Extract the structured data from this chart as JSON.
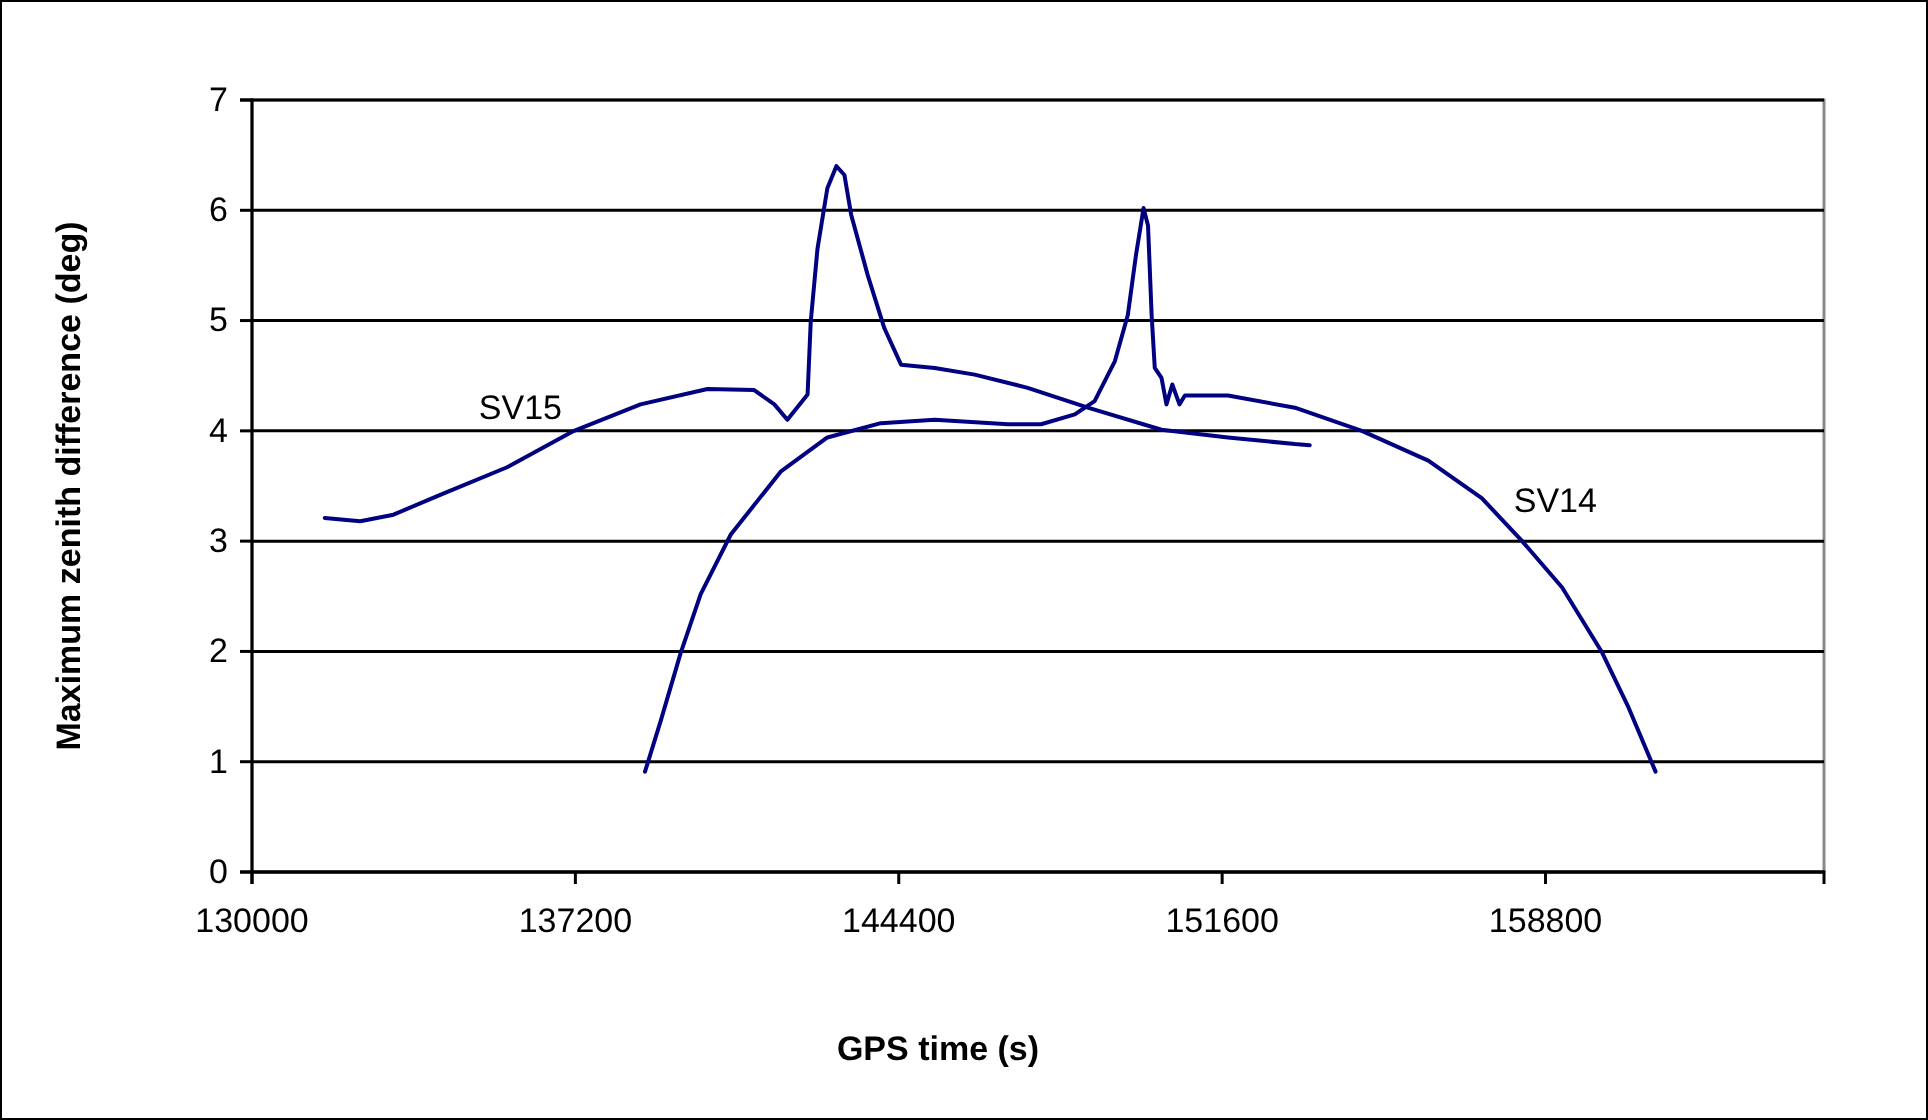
{
  "chart_data": {
    "type": "line",
    "xlabel": "GPS time (s)",
    "ylabel": "Maximum zenith difference (deg)",
    "xlim": [
      130000,
      165000
    ],
    "xticks": [
      130000,
      137200,
      144400,
      151600,
      158800
    ],
    "ylim": [
      0,
      7
    ],
    "yticks": [
      0,
      1,
      2,
      3,
      4,
      5,
      6,
      7
    ],
    "grid": "y",
    "legend": false,
    "marker": "none",
    "line_style": "solid",
    "series": [
      {
        "name": "SV15",
        "color": "#000080",
        "x": [
          131620,
          132410,
          133150,
          134190,
          135680,
          137170,
          138650,
          140140,
          141180,
          141630,
          141920,
          142370,
          142440,
          142590,
          142810,
          143010,
          143190,
          143340,
          143710,
          144080,
          144450,
          145200,
          146090,
          147270,
          148610,
          150250,
          151730,
          153220,
          153550
        ],
        "values": [
          3.21,
          3.18,
          3.24,
          3.42,
          3.67,
          4.0,
          4.24,
          4.38,
          4.37,
          4.24,
          4.1,
          4.33,
          4.99,
          5.65,
          6.2,
          6.4,
          6.32,
          5.96,
          5.41,
          4.93,
          4.6,
          4.57,
          4.51,
          4.39,
          4.21,
          4.01,
          3.94,
          3.88,
          3.87
        ]
      },
      {
        "name": "SV14",
        "color": "#000080",
        "x": [
          138750,
          139100,
          139540,
          139990,
          140660,
          141770,
          142810,
          144000,
          145200,
          146830,
          147570,
          148320,
          148760,
          149210,
          149500,
          149680,
          149850,
          149950,
          150030,
          150100,
          150250,
          150360,
          150490,
          150650,
          150770,
          151730,
          153220,
          154710,
          156190,
          157380,
          158280,
          159170,
          160060,
          160650,
          161250
        ],
        "values": [
          0.91,
          1.37,
          1.98,
          2.52,
          3.06,
          3.63,
          3.94,
          4.07,
          4.1,
          4.06,
          4.06,
          4.15,
          4.27,
          4.63,
          5.05,
          5.59,
          6.02,
          5.86,
          5.05,
          4.57,
          4.48,
          4.24,
          4.42,
          4.24,
          4.32,
          4.32,
          4.21,
          4.0,
          3.73,
          3.39,
          3.0,
          2.58,
          1.99,
          1.49,
          0.91
        ]
      }
    ]
  }
}
